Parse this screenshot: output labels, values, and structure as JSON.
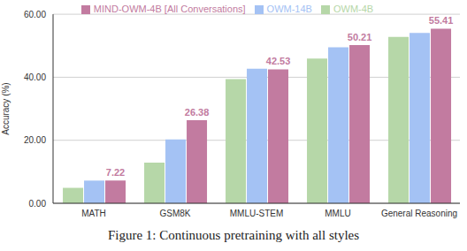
{
  "chart_data": {
    "type": "bar",
    "y_label": "Accuracy (%)",
    "caption": "Figure 1: Continuous pretraining with all styles",
    "categories": [
      "MATH",
      "GSM8K",
      "MMLU-STEM",
      "MMLU",
      "General Reasoning"
    ],
    "series": [
      {
        "name": "OWM-4B",
        "color": "#b6d7a8",
        "values": [
          4.9,
          12.9,
          39.4,
          45.9,
          52.8
        ],
        "data_labels": false
      },
      {
        "name": "OWM-14B",
        "color": "#a4c2f4",
        "values": [
          7.2,
          20.3,
          42.7,
          49.5,
          54.1
        ],
        "data_labels": false
      },
      {
        "name": "MIND-OWM-4B [All Conversations]",
        "color": "#c27ba0",
        "values": [
          7.22,
          26.38,
          42.53,
          50.21,
          55.41
        ],
        "data_labels": true
      }
    ],
    "ylim": [
      0,
      60
    ],
    "yticks": [
      {
        "value": 0,
        "label": "0.00"
      },
      {
        "value": 20,
        "label": "20.00"
      },
      {
        "value": 40,
        "label": "40.00"
      },
      {
        "value": 60,
        "label": "60.00"
      }
    ],
    "grid": true,
    "legend": "top"
  }
}
